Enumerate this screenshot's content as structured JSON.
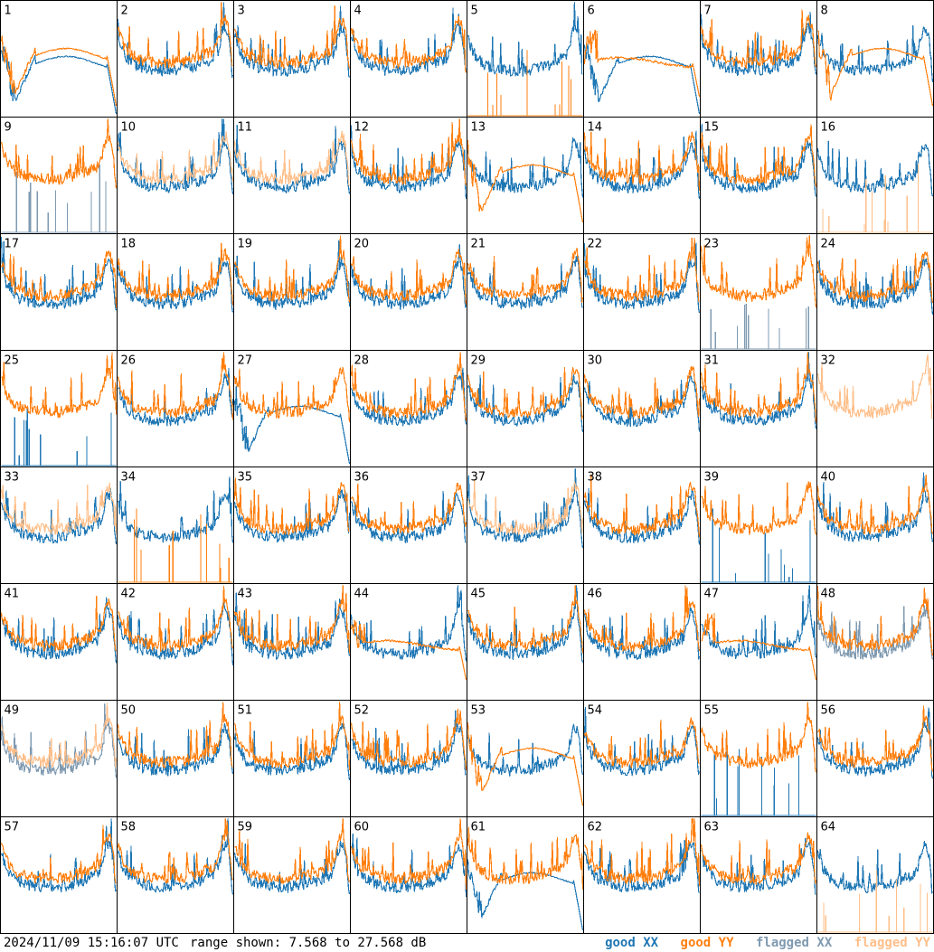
{
  "footer": {
    "timestamp": "2024/11/09 15:16:07 UTC",
    "range_text": "range shown: 7.568 to 27.568 dB"
  },
  "legend": {
    "good_xx": "good XX",
    "good_yy": "good YY",
    "flagged_xx": "flagged XX",
    "flagged_yy": "flagged YY"
  },
  "colors": {
    "good_xx": "#1f77b4",
    "good_yy": "#ff7f0e",
    "flagged_xx": "#7f9ab0",
    "flagged_yy": "#ffbf8a",
    "grid": "#000000"
  },
  "chart_data": {
    "type": "line",
    "grid_rows": 8,
    "grid_cols": 8,
    "ylim": [
      7.568,
      27.568
    ],
    "yunit": "dB",
    "panels": [
      {
        "id": 1,
        "xx": "good",
        "yy": "good",
        "xx_shape": "dip",
        "yy_shape": "dip"
      },
      {
        "id": 2,
        "xx": "good",
        "yy": "good",
        "xx_shape": "normal",
        "yy_shape": "normal"
      },
      {
        "id": 3,
        "xx": "good",
        "yy": "good",
        "xx_shape": "normal",
        "yy_shape": "normal"
      },
      {
        "id": 4,
        "xx": "good",
        "yy": "good",
        "xx_shape": "normal",
        "yy_shape": "normal"
      },
      {
        "id": 5,
        "xx": "good",
        "yy": "good",
        "xx_shape": "normal",
        "yy_shape": "spikes"
      },
      {
        "id": 6,
        "xx": "good",
        "yy": "good",
        "xx_shape": "dip",
        "yy_shape": "flat"
      },
      {
        "id": 7,
        "xx": "good",
        "yy": "good",
        "xx_shape": "normal",
        "yy_shape": "normal"
      },
      {
        "id": 8,
        "xx": "good",
        "yy": "good",
        "xx_shape": "normal",
        "yy_shape": "dip"
      },
      {
        "id": 9,
        "xx": "flagged",
        "yy": "good",
        "xx_shape": "spikes",
        "yy_shape": "normal"
      },
      {
        "id": 10,
        "xx": "good",
        "yy": "flagged",
        "xx_shape": "normal",
        "yy_shape": "normal"
      },
      {
        "id": 11,
        "xx": "good",
        "yy": "flagged",
        "xx_shape": "normal",
        "yy_shape": "normal"
      },
      {
        "id": 12,
        "xx": "good",
        "yy": "good",
        "xx_shape": "normal",
        "yy_shape": "normal"
      },
      {
        "id": 13,
        "xx": "good",
        "yy": "good",
        "xx_shape": "normal",
        "yy_shape": "dip"
      },
      {
        "id": 14,
        "xx": "good",
        "yy": "good",
        "xx_shape": "normal",
        "yy_shape": "normal"
      },
      {
        "id": 15,
        "xx": "good",
        "yy": "good",
        "xx_shape": "normal",
        "yy_shape": "normal"
      },
      {
        "id": 16,
        "xx": "good",
        "yy": "flagged",
        "xx_shape": "normal",
        "yy_shape": "spikes"
      },
      {
        "id": 17,
        "xx": "good",
        "yy": "good",
        "xx_shape": "normal",
        "yy_shape": "normal"
      },
      {
        "id": 18,
        "xx": "good",
        "yy": "good",
        "xx_shape": "normal",
        "yy_shape": "normal"
      },
      {
        "id": 19,
        "xx": "good",
        "yy": "good",
        "xx_shape": "normal",
        "yy_shape": "normal"
      },
      {
        "id": 20,
        "xx": "good",
        "yy": "good",
        "xx_shape": "normal",
        "yy_shape": "normal"
      },
      {
        "id": 21,
        "xx": "good",
        "yy": "good",
        "xx_shape": "normal",
        "yy_shape": "normal"
      },
      {
        "id": 22,
        "xx": "good",
        "yy": "good",
        "xx_shape": "normal",
        "yy_shape": "normal"
      },
      {
        "id": 23,
        "xx": "flagged",
        "yy": "good",
        "xx_shape": "spikes",
        "yy_shape": "normal"
      },
      {
        "id": 24,
        "xx": "good",
        "yy": "good",
        "xx_shape": "normal",
        "yy_shape": "normal"
      },
      {
        "id": 25,
        "xx": "good",
        "yy": "good",
        "xx_shape": "spikes",
        "yy_shape": "normal"
      },
      {
        "id": 26,
        "xx": "good",
        "yy": "good",
        "xx_shape": "normal",
        "yy_shape": "normal"
      },
      {
        "id": 27,
        "xx": "good",
        "yy": "good",
        "xx_shape": "dip",
        "yy_shape": "normal"
      },
      {
        "id": 28,
        "xx": "good",
        "yy": "good",
        "xx_shape": "normal",
        "yy_shape": "normal"
      },
      {
        "id": 29,
        "xx": "good",
        "yy": "good",
        "xx_shape": "normal",
        "yy_shape": "normal"
      },
      {
        "id": 30,
        "xx": "good",
        "yy": "good",
        "xx_shape": "normal",
        "yy_shape": "normal"
      },
      {
        "id": 31,
        "xx": "good",
        "yy": "good",
        "xx_shape": "normal",
        "yy_shape": "normal"
      },
      {
        "id": 32,
        "xx": "none",
        "yy": "flagged",
        "xx_shape": "none",
        "yy_shape": "normal"
      },
      {
        "id": 33,
        "xx": "good",
        "yy": "flagged",
        "xx_shape": "normal",
        "yy_shape": "normal"
      },
      {
        "id": 34,
        "xx": "good",
        "yy": "good",
        "xx_shape": "normal",
        "yy_shape": "spikes"
      },
      {
        "id": 35,
        "xx": "good",
        "yy": "good",
        "xx_shape": "normal",
        "yy_shape": "normal"
      },
      {
        "id": 36,
        "xx": "good",
        "yy": "good",
        "xx_shape": "normal",
        "yy_shape": "normal"
      },
      {
        "id": 37,
        "xx": "good",
        "yy": "flagged",
        "xx_shape": "normal",
        "yy_shape": "normal"
      },
      {
        "id": 38,
        "xx": "good",
        "yy": "good",
        "xx_shape": "normal",
        "yy_shape": "normal"
      },
      {
        "id": 39,
        "xx": "good",
        "yy": "good",
        "xx_shape": "spikes",
        "yy_shape": "normal"
      },
      {
        "id": 40,
        "xx": "good",
        "yy": "good",
        "xx_shape": "normal",
        "yy_shape": "normal"
      },
      {
        "id": 41,
        "xx": "good",
        "yy": "good",
        "xx_shape": "normal",
        "yy_shape": "normal"
      },
      {
        "id": 42,
        "xx": "good",
        "yy": "good",
        "xx_shape": "normal",
        "yy_shape": "normal"
      },
      {
        "id": 43,
        "xx": "good",
        "yy": "good",
        "xx_shape": "normal",
        "yy_shape": "normal"
      },
      {
        "id": 44,
        "xx": "good",
        "yy": "good",
        "xx_shape": "normal",
        "yy_shape": "flat"
      },
      {
        "id": 45,
        "xx": "good",
        "yy": "good",
        "xx_shape": "normal",
        "yy_shape": "normal"
      },
      {
        "id": 46,
        "xx": "good",
        "yy": "good",
        "xx_shape": "normal",
        "yy_shape": "normal"
      },
      {
        "id": 47,
        "xx": "good",
        "yy": "good",
        "xx_shape": "normal",
        "yy_shape": "flat"
      },
      {
        "id": 48,
        "xx": "flagged",
        "yy": "good",
        "xx_shape": "normal",
        "yy_shape": "normal"
      },
      {
        "id": 49,
        "xx": "flagged",
        "yy": "flagged",
        "xx_shape": "normal",
        "yy_shape": "normal"
      },
      {
        "id": 50,
        "xx": "good",
        "yy": "good",
        "xx_shape": "normal",
        "yy_shape": "normal"
      },
      {
        "id": 51,
        "xx": "good",
        "yy": "good",
        "xx_shape": "normal",
        "yy_shape": "normal"
      },
      {
        "id": 52,
        "xx": "good",
        "yy": "good",
        "xx_shape": "normal",
        "yy_shape": "normal"
      },
      {
        "id": 53,
        "xx": "good",
        "yy": "good",
        "xx_shape": "normal",
        "yy_shape": "dip"
      },
      {
        "id": 54,
        "xx": "good",
        "yy": "good",
        "xx_shape": "normal",
        "yy_shape": "normal"
      },
      {
        "id": 55,
        "xx": "good",
        "yy": "good",
        "xx_shape": "spikes",
        "yy_shape": "normal"
      },
      {
        "id": 56,
        "xx": "good",
        "yy": "good",
        "xx_shape": "normal",
        "yy_shape": "normal"
      },
      {
        "id": 57,
        "xx": "good",
        "yy": "good",
        "xx_shape": "normal",
        "yy_shape": "normal"
      },
      {
        "id": 58,
        "xx": "good",
        "yy": "good",
        "xx_shape": "normal",
        "yy_shape": "normal"
      },
      {
        "id": 59,
        "xx": "good",
        "yy": "good",
        "xx_shape": "normal",
        "yy_shape": "normal"
      },
      {
        "id": 60,
        "xx": "good",
        "yy": "good",
        "xx_shape": "normal",
        "yy_shape": "normal"
      },
      {
        "id": 61,
        "xx": "good",
        "yy": "good",
        "xx_shape": "dip",
        "yy_shape": "normal"
      },
      {
        "id": 62,
        "xx": "good",
        "yy": "good",
        "xx_shape": "normal",
        "yy_shape": "normal"
      },
      {
        "id": 63,
        "xx": "good",
        "yy": "good",
        "xx_shape": "normal",
        "yy_shape": "normal"
      },
      {
        "id": 64,
        "xx": "good",
        "yy": "flagged",
        "xx_shape": "normal",
        "yy_shape": "spikes"
      }
    ]
  }
}
